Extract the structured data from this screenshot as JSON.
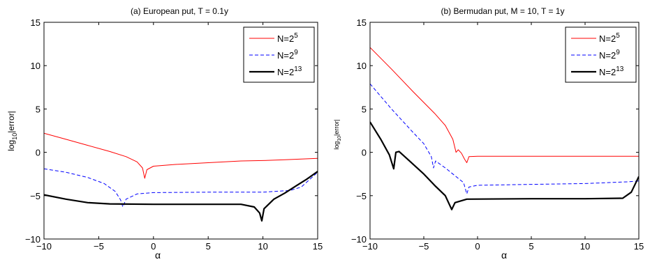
{
  "chart_data": [
    {
      "type": "line",
      "title": "(a) European put, T = 0.1y",
      "xlabel": "α",
      "ylabel_base": "log",
      "ylabel_sub": "10",
      "ylabel_rest": "|error|",
      "xlim": [
        -10,
        15
      ],
      "ylim": [
        -10,
        15
      ],
      "xticks": [
        -10,
        -5,
        0,
        5,
        10,
        15
      ],
      "yticks": [
        -10,
        -5,
        0,
        5,
        10,
        15
      ],
      "grid": false,
      "legend_position": "top-right",
      "series": [
        {
          "name": "N=2",
          "name_exp": "5",
          "color": "#ff0000",
          "style": "solid",
          "width": "thin",
          "points": [
            [
              -10,
              2.2
            ],
            [
              -8,
              1.5
            ],
            [
              -6,
              0.8
            ],
            [
              -4,
              0.1
            ],
            [
              -2.5,
              -0.5
            ],
            [
              -1.5,
              -1.1
            ],
            [
              -1.0,
              -1.8
            ],
            [
              -0.8,
              -3.0
            ],
            [
              -0.6,
              -2.0
            ],
            [
              0,
              -1.6
            ],
            [
              2,
              -1.4
            ],
            [
              5,
              -1.2
            ],
            [
              8,
              -1.0
            ],
            [
              10,
              -0.95
            ],
            [
              12,
              -0.85
            ],
            [
              15,
              -0.7
            ]
          ]
        },
        {
          "name": "N=2",
          "name_exp": "9",
          "color": "#0000ff",
          "style": "dashed",
          "width": "thin",
          "points": [
            [
              -10,
              -1.9
            ],
            [
              -8,
              -2.3
            ],
            [
              -6,
              -2.9
            ],
            [
              -4.5,
              -3.6
            ],
            [
              -3.5,
              -4.5
            ],
            [
              -3.0,
              -5.5
            ],
            [
              -2.8,
              -6.3
            ],
            [
              -2.5,
              -5.4
            ],
            [
              -1.5,
              -4.8
            ],
            [
              0,
              -4.65
            ],
            [
              5,
              -4.6
            ],
            [
              10,
              -4.6
            ],
            [
              12.5,
              -4.4
            ],
            [
              13.5,
              -4.0
            ],
            [
              15,
              -2.3
            ]
          ]
        },
        {
          "name": "N=2",
          "name_exp": "13",
          "color": "#000000",
          "style": "solid",
          "width": "thick",
          "points": [
            [
              -10,
              -4.9
            ],
            [
              -8,
              -5.4
            ],
            [
              -6,
              -5.8
            ],
            [
              -4,
              -5.95
            ],
            [
              0,
              -6.0
            ],
            [
              5,
              -6.0
            ],
            [
              8,
              -6.0
            ],
            [
              9.2,
              -6.3
            ],
            [
              9.7,
              -7.0
            ],
            [
              9.9,
              -7.9
            ],
            [
              10.1,
              -6.5
            ],
            [
              11,
              -5.4
            ],
            [
              12,
              -4.7
            ],
            [
              13,
              -3.9
            ],
            [
              14,
              -3.1
            ],
            [
              15,
              -2.2
            ]
          ]
        }
      ]
    },
    {
      "type": "line",
      "title": "(b) Bermudan put, M = 10, T = 1y",
      "xlabel": "α",
      "ylabel_base": "log",
      "ylabel_sub": "10",
      "ylabel_rest": "|error|",
      "xlim": [
        -10,
        15
      ],
      "ylim": [
        -10,
        15
      ],
      "xticks": [
        -10,
        -5,
        0,
        5,
        10,
        15
      ],
      "yticks": [
        -10,
        -5,
        0,
        5,
        10,
        15
      ],
      "grid": false,
      "legend_position": "top-right",
      "series": [
        {
          "name": "N=2",
          "name_exp": "5",
          "color": "#ff0000",
          "style": "solid",
          "width": "thin",
          "points": [
            [
              -10,
              12.1
            ],
            [
              -8,
              9.6
            ],
            [
              -6,
              7.0
            ],
            [
              -4,
              4.5
            ],
            [
              -3,
              3.1
            ],
            [
              -2.3,
              1.5
            ],
            [
              -2.0,
              0.0
            ],
            [
              -1.8,
              0.3
            ],
            [
              -1.5,
              -0.1
            ],
            [
              -1.2,
              -0.8
            ],
            [
              -1.0,
              -1.2
            ],
            [
              -0.8,
              -0.5
            ],
            [
              0,
              -0.45
            ],
            [
              5,
              -0.45
            ],
            [
              10,
              -0.45
            ],
            [
              15,
              -0.45
            ]
          ]
        },
        {
          "name": "N=2",
          "name_exp": "9",
          "color": "#0000ff",
          "style": "dashed",
          "width": "thin",
          "points": [
            [
              -10,
              7.9
            ],
            [
              -8,
              5.0
            ],
            [
              -6,
              2.3
            ],
            [
              -5,
              1.0
            ],
            [
              -4.3,
              -0.5
            ],
            [
              -4.1,
              -1.8
            ],
            [
              -3.9,
              -1.0
            ],
            [
              -3,
              -1.8
            ],
            [
              -2,
              -2.8
            ],
            [
              -1.3,
              -3.5
            ],
            [
              -1.0,
              -4.8
            ],
            [
              -0.8,
              -4.0
            ],
            [
              0,
              -3.8
            ],
            [
              5,
              -3.7
            ],
            [
              10,
              -3.6
            ],
            [
              14,
              -3.4
            ],
            [
              15,
              -3.3
            ]
          ]
        },
        {
          "name": "N=2",
          "name_exp": "13",
          "color": "#000000",
          "style": "solid",
          "width": "thick",
          "points": [
            [
              -10,
              3.5
            ],
            [
              -9,
              1.5
            ],
            [
              -8.2,
              -0.3
            ],
            [
              -7.8,
              -1.9
            ],
            [
              -7.6,
              0.0
            ],
            [
              -7.3,
              0.1
            ],
            [
              -6.5,
              -0.8
            ],
            [
              -5,
              -2.5
            ],
            [
              -4,
              -3.8
            ],
            [
              -3,
              -5.0
            ],
            [
              -2.4,
              -6.6
            ],
            [
              -2.1,
              -5.8
            ],
            [
              -1,
              -5.4
            ],
            [
              5,
              -5.35
            ],
            [
              10,
              -5.35
            ],
            [
              13.5,
              -5.3
            ],
            [
              14.3,
              -4.6
            ],
            [
              15,
              -2.8
            ]
          ]
        }
      ]
    }
  ]
}
